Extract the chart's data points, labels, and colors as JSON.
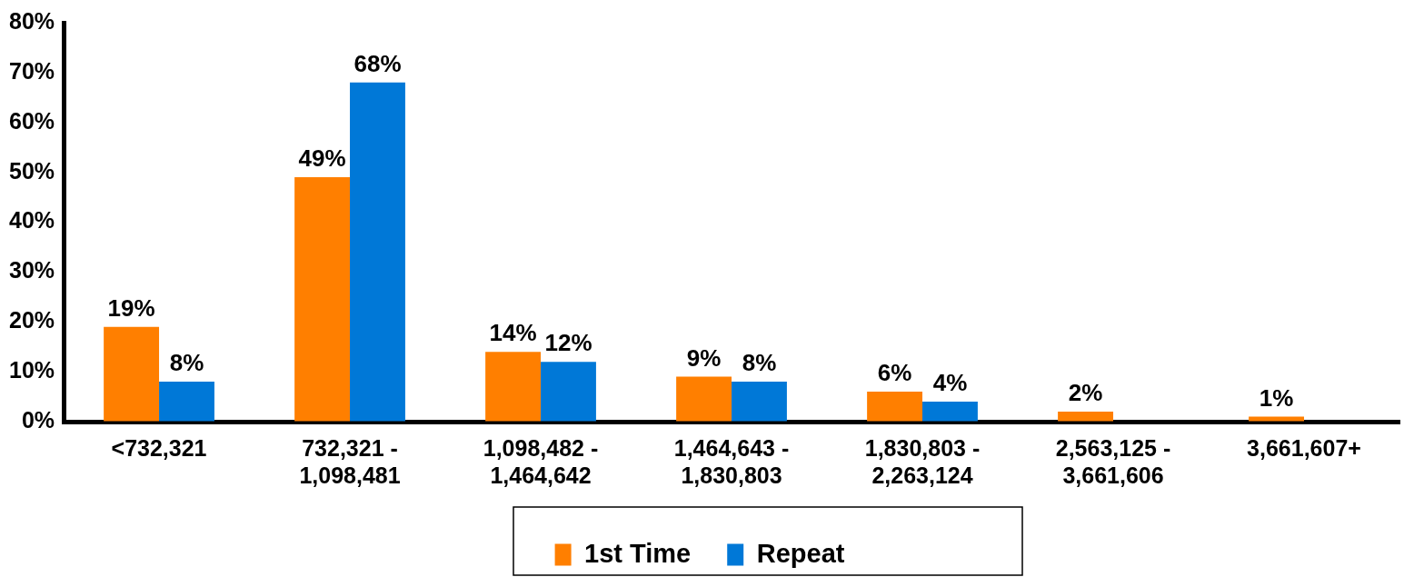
{
  "chart_data": {
    "type": "bar",
    "categories": [
      "<732,321",
      "732,321 - 1,098,481",
      "1,098,482 - 1,464,642",
      "1,464,643 - 1,830,803",
      "1,830,803 - 2,263,124",
      "2,563,125 - 3,661,606",
      "3,661,607+"
    ],
    "series": [
      {
        "name": "1st Time",
        "color": "#ff7f00",
        "values": [
          19,
          49,
          14,
          9,
          6,
          2,
          1
        ],
        "value_labels": [
          "19%",
          "49%",
          "14%",
          "9%",
          "6%",
          "2%",
          "1%"
        ]
      },
      {
        "name": "Repeat",
        "color": "#0078d7",
        "values": [
          8,
          68,
          12,
          8,
          4,
          0,
          0
        ],
        "value_labels": [
          "8%",
          "68%",
          "12%",
          "8%",
          "4%",
          null,
          null
        ]
      }
    ],
    "ylim": [
      0,
      80
    ],
    "yticks": [
      {
        "value": 0,
        "label": "0%"
      },
      {
        "value": 10,
        "label": "10%"
      },
      {
        "value": 20,
        "label": "20%"
      },
      {
        "value": 30,
        "label": "30%"
      },
      {
        "value": 40,
        "label": "40%"
      },
      {
        "value": 50,
        "label": "50%"
      },
      {
        "value": 60,
        "label": "60%"
      },
      {
        "value": 70,
        "label": "70%"
      },
      {
        "value": 80,
        "label": "80%"
      }
    ],
    "grid": false,
    "legend": "bottom"
  }
}
